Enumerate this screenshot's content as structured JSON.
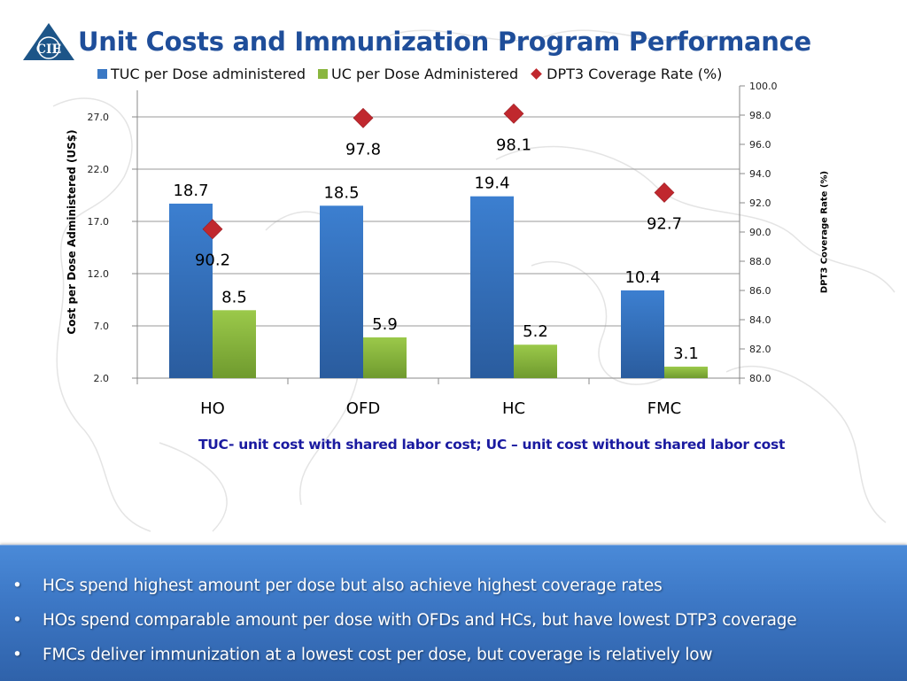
{
  "slide": {
    "title": "Unit Costs and Immunization Program Performance",
    "logo_text": "CIE",
    "footnote": "TUC- unit cost with shared labor cost;  UC – unit cost without shared labor cost",
    "bullet_glyph": "•",
    "bullets": [
      "HCs spend highest amount per dose but also achieve highest coverage rates",
      "HOs spend comparable amount per dose with OFDs and HCs, but have lowest DTP3 coverage",
      "FMCs deliver immunization at a lowest cost per dose, but coverage is relatively low"
    ]
  },
  "colors": {
    "title": "#1f4e9a",
    "tuc_bar": "#3a78c4",
    "uc_bar": "#8ab63f",
    "coverage_marker": "#c0282e",
    "footnote": "#1a1aa0",
    "summary_box": "#3d78c6"
  },
  "chart_data": {
    "type": "bar",
    "title": "Unit Costs and Immunization Program Performance",
    "categories": [
      "HO",
      "OFD",
      "HC",
      "FMC"
    ],
    "series": [
      {
        "name": "TUC per Dose administered",
        "kind": "bar",
        "axis": "left",
        "values": [
          18.7,
          18.5,
          19.4,
          10.4
        ]
      },
      {
        "name": "UC per Dose Administered",
        "kind": "bar",
        "axis": "left",
        "values": [
          8.5,
          5.9,
          5.2,
          3.1
        ]
      },
      {
        "name": "DPT3 Coverage Rate (%)",
        "kind": "scatter",
        "marker": "diamond",
        "axis": "right",
        "values": [
          90.2,
          97.8,
          98.1,
          92.7
        ]
      }
    ],
    "ylabel": "Cost per Dose Administered (US$)",
    "ylim": [
      2.0,
      27.0
    ],
    "yticks": [
      "2.0",
      "7.0",
      "12.0",
      "17.0",
      "22.0",
      "27.0"
    ],
    "y2label": "DPT3 Coverage Rate (%)",
    "y2lim": [
      80.0,
      100.0
    ],
    "y2ticks": [
      "80.0",
      "82.0",
      "84.0",
      "86.0",
      "88.0",
      "90.0",
      "92.0",
      "94.0",
      "96.0",
      "98.0",
      "100.0"
    ],
    "grid": true,
    "legend": "top",
    "data_labels": true
  }
}
